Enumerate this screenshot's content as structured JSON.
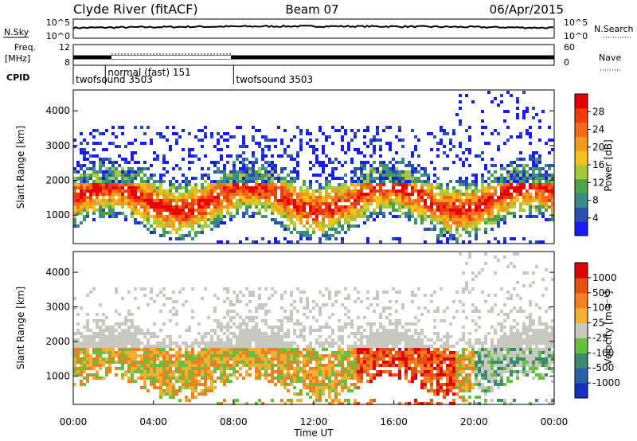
{
  "header": {
    "station": "Clyde River (fitACF)",
    "beam": "Beam 07",
    "date": "06/Apr/2015"
  },
  "noise_panel": {
    "left_label": "N.Sky",
    "right_label": "N.Search",
    "left_ticks": [
      "10^5",
      "10^0"
    ],
    "right_ticks": [
      "10^5",
      "10^0"
    ]
  },
  "freq_panel": {
    "label_line1": "Freq.",
    "label_line2": "[MHz]",
    "left_ticks": [
      "12",
      "8"
    ],
    "right_label": "Nave",
    "right_ticks": [
      "60",
      "0"
    ]
  },
  "cpid": {
    "label": "CPID",
    "modes": [
      {
        "name": "twofsound",
        "id": "3503",
        "start_hour": 0
      },
      {
        "name": "normal (fast)",
        "id": "151",
        "start_hour": 1.6
      },
      {
        "name": "twofsound",
        "id": "3503",
        "start_hour": 8
      }
    ]
  },
  "time_axis": {
    "label": "Time UT",
    "ticks": [
      "00:00",
      "04:00",
      "08:00",
      "12:00",
      "16:00",
      "20:00",
      "00:00"
    ]
  },
  "chart_data": [
    {
      "type": "heatmap",
      "quantity": "power",
      "ylabel": "Slant Range [km]",
      "y_ticks": [
        1000,
        2000,
        3000,
        4000
      ],
      "ylim": [
        180,
        4600
      ],
      "xlim_hours": [
        0,
        24
      ],
      "colorbar": {
        "label": "Power [dB]",
        "ticks": [
          "4",
          "8",
          "12",
          "16",
          "20",
          "24",
          "28"
        ],
        "colors": [
          "#1a1aff",
          "#2a50b0",
          "#3a8a8a",
          "#4ba34b",
          "#a6c93a",
          "#f4c21a",
          "#f59b1a",
          "#f36b1a",
          "#ef3b10",
          "#e80000"
        ]
      }
    },
    {
      "type": "heatmap",
      "quantity": "velocity",
      "ylabel": "Slant Range [km]",
      "y_ticks": [
        1000,
        2000,
        3000,
        4000
      ],
      "ylim": [
        180,
        4600
      ],
      "xlim_hours": [
        0,
        24
      ],
      "colorbar": {
        "label": "Velocity [m s⁻¹]",
        "ticks": [
          "1000",
          "500",
          "100",
          "25",
          "-25",
          "-100",
          "-500",
          "-1000"
        ],
        "colors": [
          "#1430c0",
          "#2a60a8",
          "#3a8a70",
          "#66c040",
          "#c8c8c0",
          "#f4b030",
          "#f08020",
          "#e85010",
          "#e00000"
        ]
      }
    }
  ]
}
